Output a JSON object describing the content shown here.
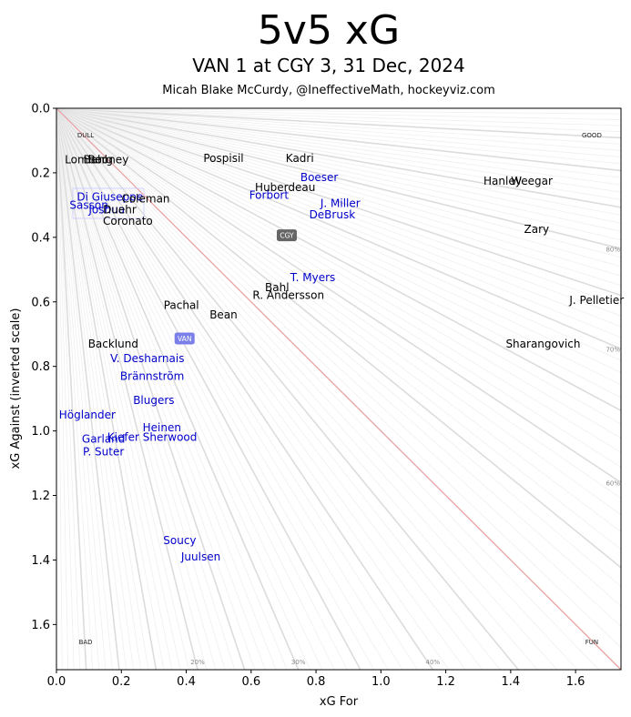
{
  "chart_data": {
    "type": "scatter",
    "title": "5v5 xG",
    "subtitle": "VAN 1 at CGY 3, 31 Dec, 2024",
    "credit": "Micah Blake McCurdy, @IneffectiveMath, hockeyviz.com",
    "xlabel": "xG For",
    "ylabel": "xG Against (inverted scale)",
    "xlim": [
      0,
      1.74
    ],
    "ylim": [
      0,
      1.74
    ],
    "y_inverted": true,
    "xticks": [
      "0.0",
      "0.2",
      "0.4",
      "0.6",
      "0.8",
      "1.0",
      "1.2",
      "1.4",
      "1.6"
    ],
    "yticks": [
      "0.0",
      "0.2",
      "0.4",
      "0.6",
      "0.8",
      "1.0",
      "1.2",
      "1.4",
      "1.6"
    ],
    "corner_labels": {
      "top_left": "DULL",
      "top_right": "GOOD",
      "bottom_left": "BAD",
      "bottom_right": "FUN"
    },
    "percent_labels": [
      {
        "text": "20%",
        "share": 0.2
      },
      {
        "text": "30%",
        "share": 0.3
      },
      {
        "text": "40%",
        "share": 0.4
      },
      {
        "text": "60%",
        "share": 0.6
      },
      {
        "text": "70%",
        "share": 0.7
      },
      {
        "text": "80%",
        "share": 0.8
      }
    ],
    "colors": {
      "home": "#000000",
      "away": "#0000cc",
      "diagonal": "#e8a3a3",
      "rays": "#bbbbbb"
    },
    "teams": [
      {
        "name": "CGY",
        "x": 0.71,
        "y": 0.395,
        "color": "#666666"
      },
      {
        "name": "VAN",
        "x": 0.395,
        "y": 0.715,
        "color": "#7b7fe8"
      }
    ],
    "players": [
      {
        "name": "Lomberg",
        "x": 0.1,
        "y": 0.16,
        "team": "home"
      },
      {
        "name": "Bahl",
        "x": 0.12,
        "y": 0.16,
        "team": "home"
      },
      {
        "name": "Rooney",
        "x": 0.16,
        "y": 0.16,
        "team": "home"
      },
      {
        "name": "Pospisil",
        "x": 0.515,
        "y": 0.155,
        "team": "home"
      },
      {
        "name": "Kadri",
        "x": 0.75,
        "y": 0.155,
        "team": "home"
      },
      {
        "name": "Boeser",
        "x": 0.81,
        "y": 0.215,
        "team": "away"
      },
      {
        "name": "Hanley",
        "x": 1.375,
        "y": 0.225,
        "team": "home"
      },
      {
        "name": "Weegar",
        "x": 1.465,
        "y": 0.225,
        "team": "home"
      },
      {
        "name": "Huberdeau",
        "x": 0.705,
        "y": 0.245,
        "team": "home"
      },
      {
        "name": "Forbort",
        "x": 0.655,
        "y": 0.27,
        "team": "away"
      },
      {
        "name": "Di Giuseppe",
        "x": 0.165,
        "y": 0.275,
        "team": "away"
      },
      {
        "name": "Coleman",
        "x": 0.275,
        "y": 0.28,
        "team": "home"
      },
      {
        "name": "Sasson",
        "x": 0.1,
        "y": 0.3,
        "team": "away"
      },
      {
        "name": "J. Miller",
        "x": 0.875,
        "y": 0.295,
        "team": "away"
      },
      {
        "name": "Joshua",
        "x": 0.155,
        "y": 0.315,
        "team": "away"
      },
      {
        "name": "Duehr",
        "x": 0.195,
        "y": 0.315,
        "team": "home"
      },
      {
        "name": "DeBrusk",
        "x": 0.85,
        "y": 0.33,
        "team": "away"
      },
      {
        "name": "Coronato",
        "x": 0.22,
        "y": 0.35,
        "team": "home"
      },
      {
        "name": "Zary",
        "x": 1.48,
        "y": 0.375,
        "team": "home"
      },
      {
        "name": "T. Myers",
        "x": 0.79,
        "y": 0.525,
        "team": "away"
      },
      {
        "name": "Bahl",
        "x": 0.68,
        "y": 0.555,
        "team": "home"
      },
      {
        "name": "R. Andersson",
        "x": 0.715,
        "y": 0.58,
        "team": "home"
      },
      {
        "name": "J. Pelletier",
        "x": 1.665,
        "y": 0.595,
        "team": "home"
      },
      {
        "name": "Pachal",
        "x": 0.385,
        "y": 0.61,
        "team": "home"
      },
      {
        "name": "Bean",
        "x": 0.515,
        "y": 0.64,
        "team": "home"
      },
      {
        "name": "Backlund",
        "x": 0.175,
        "y": 0.73,
        "team": "home"
      },
      {
        "name": "Sharangovich",
        "x": 1.5,
        "y": 0.73,
        "team": "home"
      },
      {
        "name": "V. Desharnais",
        "x": 0.28,
        "y": 0.775,
        "team": "away"
      },
      {
        "name": "Brännström",
        "x": 0.295,
        "y": 0.83,
        "team": "away"
      },
      {
        "name": "Blugers",
        "x": 0.3,
        "y": 0.905,
        "team": "away"
      },
      {
        "name": "Höglander",
        "x": 0.095,
        "y": 0.95,
        "team": "away"
      },
      {
        "name": "Heinen",
        "x": 0.325,
        "y": 0.99,
        "team": "away"
      },
      {
        "name": "Kiefer Sherwood",
        "x": 0.295,
        "y": 1.02,
        "team": "away"
      },
      {
        "name": "Garland",
        "x": 0.145,
        "y": 1.025,
        "team": "away"
      },
      {
        "name": "P. Suter",
        "x": 0.145,
        "y": 1.065,
        "team": "away"
      },
      {
        "name": "Soucy",
        "x": 0.38,
        "y": 1.34,
        "team": "away"
      },
      {
        "name": "Juulsen",
        "x": 0.445,
        "y": 1.39,
        "team": "away"
      }
    ]
  }
}
